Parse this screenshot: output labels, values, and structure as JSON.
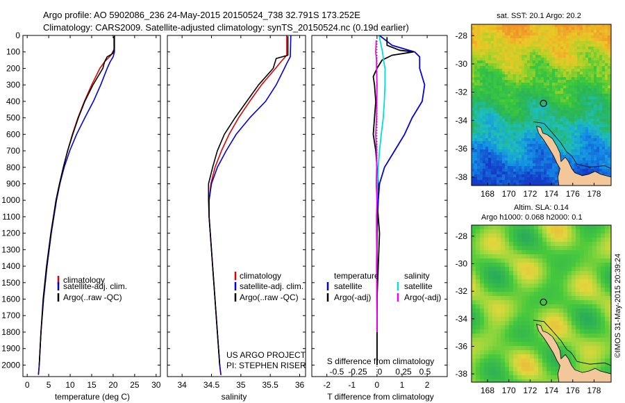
{
  "header": {
    "line1": "Argo profile: AO 5902086_236 24-May-2015 20150524_738 32.791S 173.252E",
    "line2": "Climatology: CARS2009. Satellite-adjusted climatology: synTS_20150524.nc (0.19d earlier)"
  },
  "credit": "©IMOS 31-May-2015 20:39:24",
  "colors": {
    "climatology": "#dd0000",
    "satellite": "#0000dd",
    "argo": "#000000",
    "salinity_satellite": "#00dddd",
    "salinity_argo": "#ee00ee"
  },
  "chart_data": [
    {
      "type": "line",
      "id": "temperature",
      "xlabel": "temperature (deg C)",
      "xlim": [
        -1,
        31
      ],
      "ylim": [
        2070,
        0
      ],
      "xticks": [
        0,
        5,
        10,
        15,
        20,
        25,
        30
      ],
      "yticks": [
        0,
        100,
        200,
        300,
        400,
        500,
        600,
        700,
        800,
        900,
        1000,
        1100,
        1200,
        1300,
        1400,
        1500,
        1600,
        1700,
        1800,
        1900,
        2000
      ],
      "legend": [
        "climatology",
        "satellite-adj. clim.",
        "Argo(..raw -QC)"
      ],
      "series": [
        {
          "name": "climatology",
          "color": "#dd0000",
          "depth": [
            0,
            80,
            120,
            160,
            200,
            300,
            400,
            500,
            600,
            700,
            800,
            900,
            1000,
            1200,
            1400,
            1600,
            1800,
            2000,
            2060
          ],
          "values": [
            20.3,
            20.3,
            19.5,
            18.0,
            16.9,
            15.0,
            13.3,
            11.8,
            10.5,
            9.4,
            8.4,
            7.6,
            6.8,
            5.6,
            4.6,
            3.8,
            3.2,
            2.8,
            2.6
          ]
        },
        {
          "name": "satellite-adj. clim.",
          "color": "#0000dd",
          "depth": [
            0,
            100,
            130,
            160,
            200,
            300,
            400,
            500,
            600,
            700,
            800,
            900,
            1000,
            1200,
            1400,
            1600,
            1800,
            2000,
            2060
          ],
          "values": [
            20.3,
            20.3,
            20.0,
            19.3,
            18.6,
            17.1,
            15.4,
            13.4,
            11.5,
            9.9,
            8.6,
            7.6,
            6.8,
            5.6,
            4.6,
            3.8,
            3.2,
            2.8,
            2.6
          ]
        },
        {
          "name": "Argo(..raw -QC)",
          "color": "#000000",
          "depth": [
            5,
            90,
            110,
            130,
            160,
            200,
            300,
            400,
            500,
            600,
            700,
            800,
            900,
            1000,
            1200,
            1400,
            1600,
            1800,
            2000
          ],
          "values": [
            20.2,
            20.2,
            19.9,
            18.6,
            18.0,
            17.6,
            15.3,
            13.4,
            11.9,
            10.6,
            9.4,
            8.4,
            7.5,
            6.7,
            5.5,
            4.5,
            3.7,
            3.2,
            2.8
          ]
        }
      ]
    },
    {
      "type": "line",
      "id": "salinity",
      "xlabel": "salinity",
      "xlim": [
        33.75,
        36.1
      ],
      "ylim": [
        2070,
        0
      ],
      "xticks": [
        34,
        34.5,
        35,
        35.5,
        36
      ],
      "legend": [
        "climatology",
        "satellite-adj. clim.",
        "Argo(..raw -QC)"
      ],
      "annotation": [
        "US ARGO PROJECT",
        "PI: STEPHEN RISER"
      ],
      "series": [
        {
          "name": "climatology",
          "color": "#dd0000",
          "depth": [
            0,
            120,
            160,
            200,
            300,
            400,
            500,
            600,
            700,
            800,
            900,
            1000,
            1100,
            1200,
            1400,
            1600,
            1800,
            2000,
            2060
          ],
          "values": [
            35.78,
            35.78,
            35.68,
            35.59,
            35.35,
            35.15,
            34.96,
            34.8,
            34.67,
            34.56,
            34.49,
            34.46,
            34.46,
            34.48,
            34.52,
            34.56,
            34.6,
            34.64,
            34.66
          ]
        },
        {
          "name": "satellite-adj. clim.",
          "color": "#0000dd",
          "depth": [
            0,
            130,
            170,
            200,
            300,
            400,
            500,
            600,
            700,
            800,
            900,
            1000,
            1100,
            1200,
            1400,
            1600,
            1800,
            2000,
            2060
          ],
          "values": [
            35.85,
            35.84,
            35.78,
            35.74,
            35.6,
            35.42,
            35.15,
            34.92,
            34.75,
            34.6,
            34.5,
            34.46,
            34.46,
            34.48,
            34.52,
            34.56,
            34.6,
            34.64,
            34.66
          ]
        },
        {
          "name": "Argo(..raw -QC)",
          "color": "#000000",
          "depth": [
            5,
            120,
            140,
            200,
            300,
            400,
            500,
            600,
            700,
            800,
            900,
            1000,
            1100,
            1200,
            1400,
            1600,
            1800,
            2000
          ],
          "values": [
            35.8,
            35.8,
            35.6,
            35.55,
            35.3,
            35.1,
            34.9,
            34.72,
            34.6,
            34.52,
            34.45,
            34.45,
            34.46,
            34.48,
            34.52,
            34.56,
            34.6,
            34.64
          ]
        }
      ]
    },
    {
      "type": "line",
      "id": "difference",
      "xlabel": "T difference from climatology",
      "top_label": "S difference from climatology",
      "xlim": [
        -2.6,
        2.8
      ],
      "ylim": [
        2070,
        0
      ],
      "xticks": [
        -2,
        -1,
        0,
        1,
        2
      ],
      "top_ticks": [
        "-0.5",
        "-0.25",
        "0",
        "0.25",
        "0.5"
      ],
      "legend_temperature": [
        "temperature",
        "satellite",
        "Argo(-adj)"
      ],
      "legend_salinity": [
        "salinity",
        "satellite",
        "Argo(-adj)"
      ],
      "series": [
        {
          "name": "satellite",
          "color": "#0000dd",
          "depth": [
            0,
            60,
            100,
            130,
            200,
            300,
            400,
            500,
            600,
            700,
            800,
            900,
            1000,
            1200,
            1400,
            1600,
            1800,
            2000
          ],
          "values": [
            0.1,
            0.6,
            1.5,
            1.7,
            1.7,
            1.9,
            1.8,
            1.4,
            1.1,
            0.7,
            0.3,
            0.1,
            0.05,
            0.0,
            0.0,
            0.0,
            0.0,
            0.0
          ]
        },
        {
          "name": "Argo(-adj)",
          "color": "#000000",
          "depth": [
            10,
            60,
            90,
            100,
            120,
            150,
            200,
            250,
            300,
            400,
            500,
            600,
            700,
            800,
            900,
            1000,
            1100,
            1200,
            1400,
            1600,
            1800,
            2000
          ],
          "values": [
            0.4,
            0.4,
            0.9,
            1.45,
            0.6,
            0.2,
            0.0,
            -0.15,
            -0.1,
            -0.05,
            -0.1,
            -0.15,
            -0.05,
            0.0,
            0.05,
            0.0,
            0.05,
            0.1,
            0.05,
            0.0,
            0.0,
            0.0
          ]
        },
        {
          "name": "salinity satellite",
          "color": "#00dddd",
          "depth": [
            0,
            100,
            150,
            200,
            300,
            400,
            500,
            600,
            700,
            800,
            900,
            1000
          ],
          "values": [
            0.08,
            0.22,
            0.26,
            0.32,
            0.32,
            0.29,
            0.25,
            0.17,
            0.1,
            0.05,
            0.02,
            0.0
          ]
        },
        {
          "name": "salinity Argo(-adj)",
          "color": "#ee00ee",
          "depth": [
            30,
            100,
            150,
            200,
            300,
            400,
            500,
            600,
            700,
            800,
            900,
            1000,
            1100,
            1200,
            1300,
            1400,
            1500,
            1600,
            1700,
            1800
          ],
          "values": [
            -0.03,
            -0.05,
            -0.02,
            -0.02,
            0.0,
            -0.01,
            -0.02,
            -0.05,
            -0.02,
            -0.01,
            -0.03,
            0.0,
            -0.02,
            -0.02,
            -0.01,
            -0.02,
            -0.01,
            -0.01,
            0.0,
            0.0
          ]
        }
      ]
    },
    {
      "type": "heatmap",
      "id": "sst-map",
      "title": "sat. SST: 20.1  Argo: 20.2",
      "xlim": [
        166.5,
        179.6
      ],
      "ylim": [
        -38.6,
        -27.2
      ],
      "xticks": [
        168,
        170,
        172,
        174,
        176,
        178
      ],
      "yticks": [
        -28,
        -30,
        -32,
        -34,
        -36,
        -38
      ],
      "marker": {
        "lon": 173.25,
        "lat": -32.79
      }
    },
    {
      "type": "heatmap",
      "id": "sla-map",
      "title_line1": "Altim. SLA: 0.14",
      "title_line2": "Argo h1000: 0.068 h2000: 0.1",
      "xlim": [
        166.5,
        179.6
      ],
      "ylim": [
        -38.6,
        -27.2
      ],
      "xticks": [
        168,
        170,
        172,
        174,
        176,
        178
      ],
      "yticks": [
        -28,
        -30,
        -32,
        -34,
        -36,
        -38
      ],
      "marker": {
        "lon": 173.25,
        "lat": -32.79
      }
    }
  ]
}
